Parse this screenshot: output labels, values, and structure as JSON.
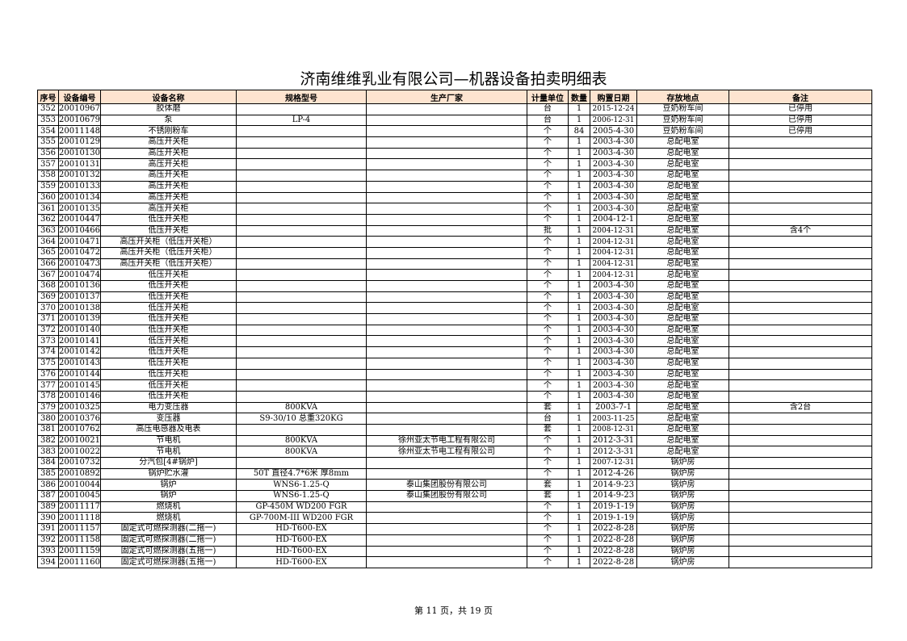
{
  "title": "济南维维乳业有限公司—机器设备拍卖明细表",
  "columns": [
    "序号",
    "设备编号",
    "设备名称",
    "规格型号",
    "生产厂家",
    "计量单位",
    "数量",
    "购置日期",
    "存放地点",
    "备注"
  ],
  "rows": [
    [
      "352",
      "20010967",
      "胶体磨",
      "",
      "",
      "台",
      "1",
      "2015-12-24",
      "豆奶粉车间",
      "已停用"
    ],
    [
      "353",
      "20010679",
      "泵",
      "LP-4",
      "",
      "台",
      "1",
      "2006-12-31",
      "豆奶粉车间",
      "已停用"
    ],
    [
      "354",
      "20011148",
      "不锈刚粉车",
      "",
      "",
      "个",
      "84",
      "2005-4-30",
      "豆奶粉车间",
      "已停用"
    ],
    [
      "355",
      "20010129",
      "高压开关柜",
      "",
      "",
      "个",
      "1",
      "2003-4-30",
      "总配电室",
      ""
    ],
    [
      "356",
      "20010130",
      "高压开关柜",
      "",
      "",
      "个",
      "1",
      "2003-4-30",
      "总配电室",
      ""
    ],
    [
      "357",
      "20010131",
      "高压开关柜",
      "",
      "",
      "个",
      "1",
      "2003-4-30",
      "总配电室",
      ""
    ],
    [
      "358",
      "20010132",
      "高压开关柜",
      "",
      "",
      "个",
      "1",
      "2003-4-30",
      "总配电室",
      ""
    ],
    [
      "359",
      "20010133",
      "高压开关柜",
      "",
      "",
      "个",
      "1",
      "2003-4-30",
      "总配电室",
      ""
    ],
    [
      "360",
      "20010134",
      "高压开关柜",
      "",
      "",
      "个",
      "1",
      "2003-4-30",
      "总配电室",
      ""
    ],
    [
      "361",
      "20010135",
      "高压开关柜",
      "",
      "",
      "个",
      "1",
      "2003-4-30",
      "总配电室",
      ""
    ],
    [
      "362",
      "20010447",
      "低压开关柜",
      "",
      "",
      "个",
      "1",
      "2004-12-1",
      "总配电室",
      ""
    ],
    [
      "363",
      "20010466",
      "低压开关柜",
      "",
      "",
      "批",
      "1",
      "2004-12-31",
      "总配电室",
      "含4个"
    ],
    [
      "364",
      "20010471",
      "高压开关柜（低压开关柜）",
      "",
      "",
      "个",
      "1",
      "2004-12-31",
      "总配电室",
      ""
    ],
    [
      "365",
      "20010472",
      "高压开关柜（低压开关柜）",
      "",
      "",
      "个",
      "1",
      "2004-12-31",
      "总配电室",
      ""
    ],
    [
      "366",
      "20010473",
      "高压开关柜（低压开关柜）",
      "",
      "",
      "个",
      "1",
      "2004-12-31",
      "总配电室",
      ""
    ],
    [
      "367",
      "20010474",
      "低压开关柜",
      "",
      "",
      "个",
      "1",
      "2004-12-31",
      "总配电室",
      ""
    ],
    [
      "368",
      "20010136",
      "低压开关柜",
      "",
      "",
      "个",
      "1",
      "2003-4-30",
      "总配电室",
      ""
    ],
    [
      "369",
      "20010137",
      "低压开关柜",
      "",
      "",
      "个",
      "1",
      "2003-4-30",
      "总配电室",
      ""
    ],
    [
      "370",
      "20010138",
      "低压开关柜",
      "",
      "",
      "个",
      "1",
      "2003-4-30",
      "总配电室",
      ""
    ],
    [
      "371",
      "20010139",
      "低压开关柜",
      "",
      "",
      "个",
      "1",
      "2003-4-30",
      "总配电室",
      ""
    ],
    [
      "372",
      "20010140",
      "低压开关柜",
      "",
      "",
      "个",
      "1",
      "2003-4-30",
      "总配电室",
      ""
    ],
    [
      "373",
      "20010141",
      "低压开关柜",
      "",
      "",
      "个",
      "1",
      "2003-4-30",
      "总配电室",
      ""
    ],
    [
      "374",
      "20010142",
      "低压开关柜",
      "",
      "",
      "个",
      "1",
      "2003-4-30",
      "总配电室",
      ""
    ],
    [
      "375",
      "20010143",
      "低压开关柜",
      "",
      "",
      "个",
      "1",
      "2003-4-30",
      "总配电室",
      ""
    ],
    [
      "376",
      "20010144",
      "低压开关柜",
      "",
      "",
      "个",
      "1",
      "2003-4-30",
      "总配电室",
      ""
    ],
    [
      "377",
      "20010145",
      "低压开关柜",
      "",
      "",
      "个",
      "1",
      "2003-4-30",
      "总配电室",
      ""
    ],
    [
      "378",
      "20010146",
      "低压开关柜",
      "",
      "",
      "个",
      "1",
      "2003-4-30",
      "总配电室",
      ""
    ],
    [
      "379",
      "20010325",
      "电力变压器",
      "800KVA",
      "",
      "套",
      "1",
      "2003-7-1",
      "总配电室",
      "含2台"
    ],
    [
      "380",
      "20010376",
      "变压器",
      "S9-30/10 总重320KG",
      "",
      "台",
      "1",
      "2003-11-25",
      "总配电室",
      ""
    ],
    [
      "381",
      "20010762",
      "高压电感器及电表",
      "",
      "",
      "套",
      "1",
      "2008-12-31",
      "总配电室",
      ""
    ],
    [
      "382",
      "20010021",
      "节电机",
      "800KVA",
      "徐州亚太节电工程有限公司",
      "个",
      "1",
      "2012-3-31",
      "总配电室",
      ""
    ],
    [
      "383",
      "20010022",
      "节电机",
      "800KVA",
      "徐州亚太节电工程有限公司",
      "个",
      "1",
      "2012-3-31",
      "总配电室",
      ""
    ],
    [
      "384",
      "20010732",
      "分汽包[4#锅炉]",
      "",
      "",
      "个",
      "1",
      "2007-12-31",
      "锅炉房",
      ""
    ],
    [
      "385",
      "20010892",
      "锅炉贮水灌",
      "50T 直径4.7*6米 厚8mm",
      "",
      "个",
      "1",
      "2012-4-26",
      "锅炉房",
      ""
    ],
    [
      "386",
      "20010044",
      "锅炉",
      "WNS6-1.25-Q",
      "泰山集团股份有限公司",
      "套",
      "1",
      "2014-9-23",
      "锅炉房",
      ""
    ],
    [
      "387",
      "20010045",
      "锅炉",
      "WNS6-1.25-Q",
      "泰山集团股份有限公司",
      "套",
      "1",
      "2014-9-23",
      "锅炉房",
      ""
    ],
    [
      "389",
      "20011117",
      "燃烧机",
      "GP-450M WD200 FGR",
      "",
      "个",
      "1",
      "2019-1-19",
      "锅炉房",
      ""
    ],
    [
      "390",
      "20011118",
      "燃烧机",
      "GP-700M-III WD200 FGR",
      "",
      "个",
      "1",
      "2019-1-19",
      "锅炉房",
      ""
    ],
    [
      "391",
      "20011157",
      "固定式可燃探测器(二拖一)",
      "HD-T600-EX",
      "",
      "个",
      "1",
      "2022-8-28",
      "锅炉房",
      ""
    ],
    [
      "392",
      "20011158",
      "固定式可燃探测器(二拖一)",
      "HD-T600-EX",
      "",
      "个",
      "1",
      "2022-8-28",
      "锅炉房",
      ""
    ],
    [
      "393",
      "20011159",
      "固定式可燃探测器(五拖一)",
      "HD-T600-EX",
      "",
      "个",
      "1",
      "2022-8-28",
      "锅炉房",
      ""
    ],
    [
      "394",
      "20011160",
      "固定式可燃探测器(五拖一)",
      "HD-T600-EX",
      "",
      "个",
      "1",
      "2022-8-28",
      "锅炉房",
      ""
    ]
  ],
  "footer": "第 11 页，共 19 页"
}
